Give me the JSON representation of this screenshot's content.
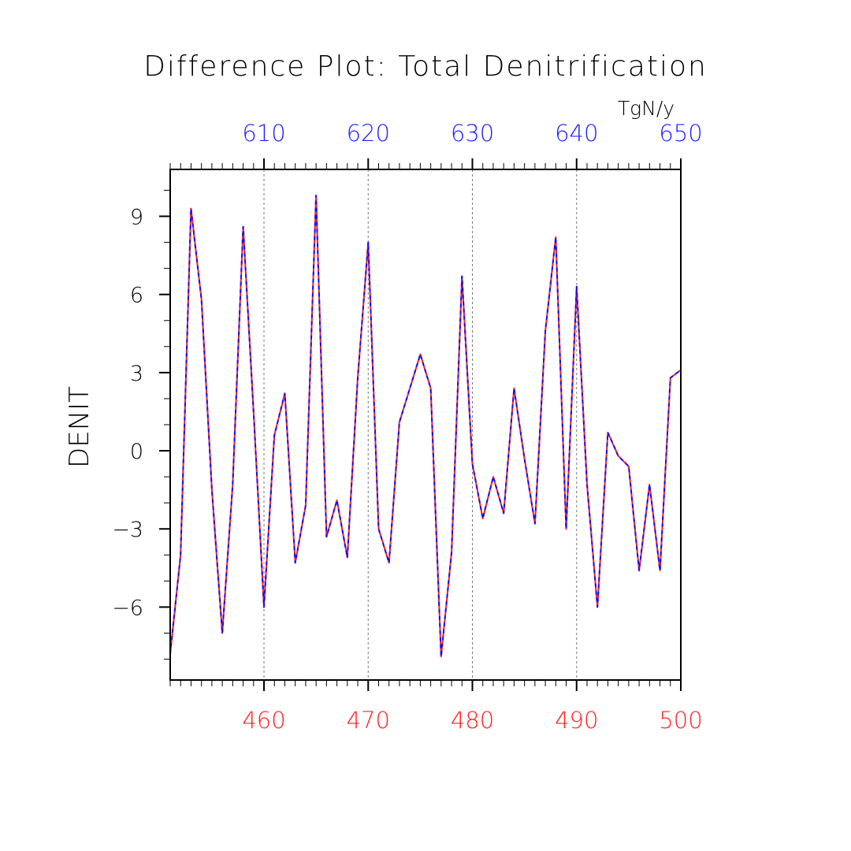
{
  "chart_data": {
    "type": "line",
    "title": "Difference Plot: Total Denitrification",
    "units": "TgN/y",
    "ylabel": "DENIT",
    "xlabel": "",
    "xlim": [
      451,
      500
    ],
    "ylim": [
      -8.8,
      10.8
    ],
    "grid": "vertical dashed lines at major bottom ticks",
    "x_bottom": {
      "ticks": [
        460,
        470,
        480,
        490,
        500
      ],
      "color": "#ff2020"
    },
    "x_top": {
      "ticks": [
        610,
        620,
        630,
        640,
        650
      ],
      "color": "#2020ff",
      "offset": 150
    },
    "y_ticks": [
      9,
      6,
      3,
      0,
      -3,
      -6
    ],
    "series": [
      {
        "style": "solid",
        "color": "#ff2020",
        "x": [
          451,
          452,
          453,
          454,
          455,
          456,
          457,
          458,
          459,
          460,
          461,
          462,
          463,
          464,
          465,
          466,
          467,
          468,
          469,
          470,
          471,
          472,
          473,
          474,
          475,
          476,
          477,
          478,
          479,
          480,
          481,
          482,
          483,
          484,
          485,
          486,
          487,
          488,
          489,
          490,
          491,
          492,
          493,
          494,
          495,
          496,
          497,
          498,
          499,
          500
        ],
        "values": [
          -7.8,
          -4.0,
          9.3,
          5.8,
          -1.5,
          -7.0,
          -1.3,
          8.6,
          1.5,
          -6.0,
          0.6,
          2.2,
          -4.3,
          -2.1,
          9.8,
          -3.3,
          -1.9,
          -4.1,
          2.8,
          8.0,
          -3.0,
          -4.3,
          1.1,
          2.4,
          3.7,
          2.4,
          -7.9,
          -3.9,
          6.7,
          -0.5,
          -2.6,
          -1.0,
          -2.4,
          2.4,
          -0.3,
          -2.8,
          4.6,
          8.2,
          -3.0,
          6.3,
          -1.3,
          -6.0,
          0.7,
          -0.2,
          -0.6,
          -4.6,
          -1.3,
          -4.6,
          2.8,
          3.1
        ]
      },
      {
        "style": "dashed",
        "color": "#1010ff",
        "x": [
          451,
          452,
          453,
          454,
          455,
          456,
          457,
          458,
          459,
          460,
          461,
          462,
          463,
          464,
          465,
          466,
          467,
          468,
          469,
          470,
          471,
          472,
          473,
          474,
          475,
          476,
          477,
          478,
          479,
          480,
          481,
          482,
          483,
          484,
          485,
          486,
          487,
          488,
          489,
          490,
          491,
          492,
          493,
          494,
          495,
          496,
          497,
          498,
          499,
          500
        ],
        "values": [
          -7.8,
          -4.0,
          9.3,
          5.8,
          -1.5,
          -7.0,
          -1.3,
          8.6,
          1.5,
          -6.0,
          0.6,
          2.2,
          -4.3,
          -2.1,
          9.8,
          -3.3,
          -1.9,
          -4.1,
          2.8,
          8.0,
          -3.0,
          -4.3,
          1.1,
          2.4,
          3.7,
          2.4,
          -7.9,
          -3.9,
          6.7,
          -0.5,
          -2.6,
          -1.0,
          -2.4,
          2.4,
          -0.3,
          -2.8,
          4.6,
          8.2,
          -3.0,
          6.3,
          -1.3,
          -6.0,
          0.7,
          -0.2,
          -0.6,
          -4.6,
          -1.3,
          -4.6,
          2.8,
          3.1
        ]
      }
    ]
  }
}
